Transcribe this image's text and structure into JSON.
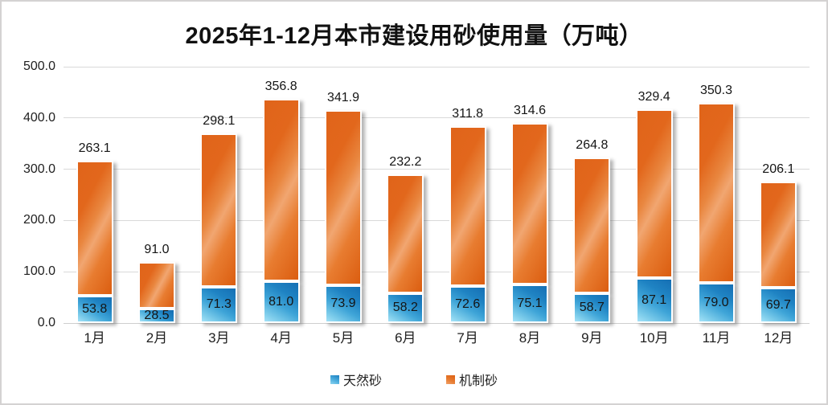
{
  "chart_data": {
    "type": "bar",
    "stacked": true,
    "title": "2025年1-12月本市建设用砂使用量（万吨）",
    "categories": [
      "1月",
      "2月",
      "3月",
      "4月",
      "5月",
      "6月",
      "7月",
      "8月",
      "9月",
      "10月",
      "11月",
      "12月"
    ],
    "series": [
      {
        "name": "天然砂",
        "color": "#2E9BD6",
        "values": [
          53.8,
          28.5,
          71.3,
          81.0,
          73.9,
          58.2,
          72.6,
          75.1,
          58.7,
          87.1,
          79.0,
          69.7
        ]
      },
      {
        "name": "机制砂",
        "color": "#E4681C",
        "values": [
          263.1,
          91.0,
          298.1,
          356.8,
          341.9,
          232.2,
          311.8,
          314.6,
          264.8,
          329.4,
          350.3,
          206.1
        ]
      }
    ],
    "ylim": [
      0,
      500
    ],
    "ytick_step": 100,
    "yticks": [
      "0.0",
      "100.0",
      "200.0",
      "300.0",
      "400.0",
      "500.0"
    ],
    "grid": true,
    "legend_position": "bottom",
    "value_label_decimals": 1
  }
}
